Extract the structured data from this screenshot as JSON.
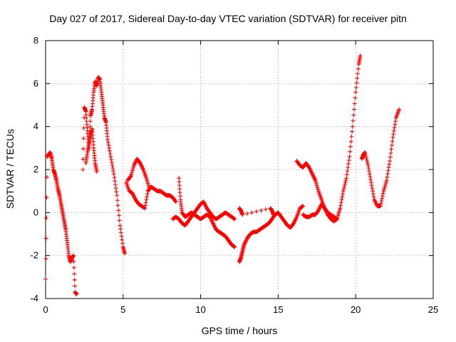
{
  "chart_data": {
    "type": "scatter",
    "title": "Day 027 of 2017, Sidereal Day-to-day VTEC variation (SDTVAR) for receiver pitn",
    "xlabel": "GPS time / hours",
    "ylabel": "SDTVAR / TECUs",
    "xlim": [
      0,
      25
    ],
    "ylim": [
      -4,
      8
    ],
    "xticks": [
      "0",
      "5",
      "10",
      "15",
      "20",
      "25"
    ],
    "yticks": [
      "-4",
      "-2",
      "0",
      "2",
      "4",
      "6",
      "8"
    ],
    "grid": true,
    "marker": "plus",
    "color": "#ff0000",
    "series": [
      {
        "name": "seg1",
        "x": [
          0.0,
          0.1,
          0.2,
          0.3,
          0.4,
          0.5,
          0.6,
          0.7,
          0.8,
          0.9,
          1.0,
          1.1,
          1.2,
          1.3,
          1.4,
          1.5,
          1.6,
          1.7,
          1.8,
          1.9,
          2.0
        ],
        "y": [
          -3.1,
          2.6,
          2.7,
          2.8,
          2.5,
          2.0,
          1.8,
          1.5,
          1.1,
          0.8,
          0.4,
          0.0,
          -0.4,
          -0.8,
          -1.4,
          -2.0,
          -2.3,
          -2.1,
          -2.0,
          -3.7,
          -3.8
        ]
      },
      {
        "name": "seg2",
        "x": [
          2.4,
          2.5,
          2.6,
          2.7,
          2.8,
          2.9,
          3.0,
          3.1,
          3.2,
          3.3,
          3.4,
          3.5,
          3.6,
          3.7,
          3.8,
          3.9,
          4.0,
          4.2,
          4.4,
          4.6,
          4.8,
          5.0,
          5.1
        ],
        "y": [
          2.0,
          4.9,
          4.7,
          3.8,
          3.0,
          4.5,
          4.8,
          5.6,
          6.1,
          5.9,
          6.3,
          6.2,
          5.6,
          5.0,
          4.4,
          4.2,
          3.4,
          2.6,
          1.8,
          0.8,
          -0.6,
          -1.6,
          -1.9
        ]
      },
      {
        "name": "seg2b",
        "x": [
          2.6,
          2.7,
          2.8,
          2.9,
          3.0,
          3.1,
          3.2,
          3.3
        ],
        "y": [
          2.3,
          2.8,
          3.2,
          3.6,
          3.9,
          3.0,
          2.3,
          1.9
        ]
      },
      {
        "name": "seg3",
        "x": [
          5.2,
          5.4,
          5.6,
          5.8,
          6.0,
          6.2,
          6.4,
          6.6,
          6.8,
          7.0,
          7.2,
          7.4,
          7.6,
          7.8,
          8.0,
          8.2,
          8.4
        ],
        "y": [
          1.4,
          1.0,
          0.9,
          0.6,
          0.4,
          0.3,
          0.2,
          1.0,
          1.2,
          1.1,
          1.0,
          1.0,
          0.9,
          0.8,
          0.8,
          0.7,
          0.5
        ]
      },
      {
        "name": "seg3b",
        "x": [
          5.3,
          5.5,
          5.7,
          5.9,
          6.1,
          6.3,
          6.5,
          6.7
        ],
        "y": [
          1.5,
          1.7,
          2.2,
          2.5,
          2.3,
          2.0,
          1.6,
          1.1
        ]
      },
      {
        "name": "seg4",
        "x": [
          8.2,
          8.4,
          8.6,
          8.8,
          9.0,
          9.2,
          9.4,
          9.6,
          9.8,
          10.0,
          10.2,
          10.4,
          10.6,
          10.8,
          11.0,
          11.2,
          11.4,
          11.6,
          11.8,
          12.0,
          12.2
        ],
        "y": [
          -0.3,
          -0.2,
          -0.3,
          -0.5,
          -0.6,
          -0.4,
          -0.2,
          0.0,
          0.2,
          0.4,
          0.5,
          0.2,
          0.0,
          -0.2,
          -0.3,
          -0.2,
          -0.1,
          0.0,
          -0.1,
          -0.2,
          -0.3
        ]
      },
      {
        "name": "seg4b",
        "x": [
          8.6,
          8.7,
          8.8,
          9.0,
          9.2,
          9.4,
          9.6,
          9.8,
          10.0,
          10.2,
          10.4,
          10.6,
          10.8,
          11.0,
          11.2,
          11.4,
          11.6,
          11.8,
          12.0,
          12.2
        ],
        "y": [
          1.6,
          0.6,
          0.0,
          -0.2,
          -0.1,
          0.0,
          -0.1,
          -0.2,
          -0.3,
          -0.2,
          -0.1,
          -0.2,
          -0.5,
          -0.8,
          -0.9,
          -1.0,
          -1.1,
          -1.3,
          -1.5,
          -1.6
        ]
      },
      {
        "name": "seg5",
        "x": [
          12.5,
          12.6,
          12.7,
          12.8,
          13.0,
          13.2,
          13.4,
          13.6,
          13.8,
          14.0,
          14.2,
          14.4,
          14.6,
          14.8,
          15.0,
          15.2,
          15.4,
          15.6,
          15.8,
          16.0,
          16.2,
          16.4,
          16.6
        ],
        "y": [
          -2.3,
          -2.1,
          -1.8,
          -1.5,
          -1.2,
          -1.0,
          -0.9,
          -0.9,
          -0.8,
          -0.7,
          -0.6,
          -0.5,
          -0.3,
          -0.1,
          0.0,
          -0.2,
          -0.4,
          -0.6,
          -0.7,
          -0.5,
          -0.2,
          0.2,
          0.3
        ]
      },
      {
        "name": "seg5b",
        "x": [
          12.5,
          12.6,
          12.7,
          14.5,
          14.6,
          14.7
        ],
        "y": [
          0.2,
          0.1,
          -0.1,
          0.2,
          0.1,
          -0.1
        ]
      },
      {
        "name": "seg6",
        "x": [
          16.2,
          16.4,
          16.6,
          16.8,
          17.0,
          17.2,
          17.4,
          17.6,
          17.8,
          18.0,
          18.2,
          18.4,
          18.6,
          18.8,
          19.0,
          19.2,
          19.4,
          19.6,
          19.8,
          20.0,
          20.2,
          20.3
        ],
        "y": [
          2.4,
          2.2,
          2.1,
          2.3,
          2.1,
          1.8,
          1.5,
          1.0,
          0.6,
          0.2,
          -0.1,
          -0.3,
          -0.4,
          -0.3,
          0.2,
          1.0,
          1.6,
          2.6,
          4.0,
          5.6,
          6.9,
          7.3
        ]
      },
      {
        "name": "seg6b",
        "x": [
          16.6,
          16.8,
          17.0,
          17.2,
          17.4,
          17.6,
          17.8,
          18.0,
          18.2,
          18.4,
          18.6,
          18.8
        ],
        "y": [
          -0.1,
          -0.2,
          -0.2,
          -0.1,
          -0.1,
          0.1,
          0.4,
          0.2,
          0.0,
          -0.1,
          -0.2,
          -0.3
        ]
      },
      {
        "name": "seg7",
        "x": [
          20.4,
          20.5,
          20.6,
          20.8,
          21.0,
          21.2,
          21.4,
          21.6,
          21.8,
          22.0,
          22.2,
          22.4,
          22.6,
          22.8
        ],
        "y": [
          2.5,
          2.7,
          2.8,
          2.2,
          1.4,
          0.6,
          0.3,
          0.3,
          1.0,
          1.5,
          2.4,
          3.5,
          4.4,
          4.8
        ]
      }
    ]
  }
}
